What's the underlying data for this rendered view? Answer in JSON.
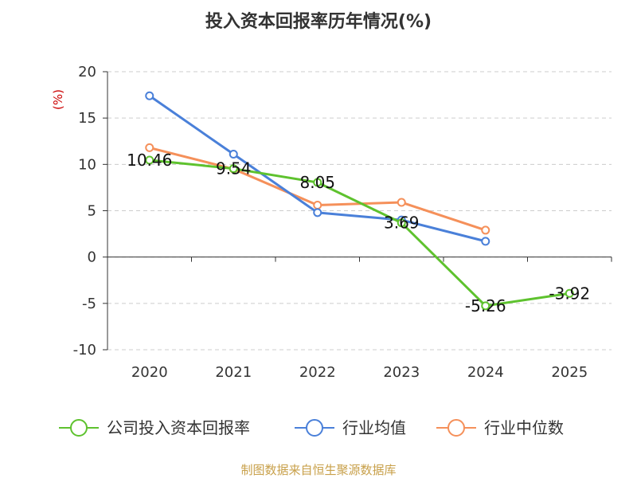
{
  "chart_data": {
    "type": "line",
    "title": "投入资本回报率历年情况(%)",
    "ylabel": "(%)",
    "xlabel": "",
    "ylim": [
      -10,
      20
    ],
    "yticks": [
      20,
      15,
      10,
      5,
      0,
      -5,
      -10
    ],
    "categories": [
      "2020",
      "2021",
      "2022",
      "2023",
      "2024",
      "2025"
    ],
    "grid": true,
    "legend_position": "bottom",
    "series": [
      {
        "name": "公司投入资本回报率",
        "color": "#5ec22e",
        "values": [
          10.46,
          9.54,
          8.05,
          3.69,
          -5.26,
          -3.92
        ],
        "labels": [
          "10.46",
          "9.54",
          "8.05",
          "3.69",
          "-5.26",
          "-3.92"
        ]
      },
      {
        "name": "行业均值",
        "color": "#4a80d9",
        "values": [
          17.4,
          11.1,
          4.8,
          4.0,
          1.7,
          null
        ]
      },
      {
        "name": "行业中位数",
        "color": "#f5905a",
        "values": [
          11.8,
          9.5,
          5.6,
          5.9,
          2.9,
          null
        ]
      }
    ],
    "source": "制图数据来自恒生聚源数据库",
    "colors": {
      "ylabel": "#cc0000",
      "source": "#c8a04a",
      "axis": "#333333",
      "grid": "#cccccc"
    }
  }
}
